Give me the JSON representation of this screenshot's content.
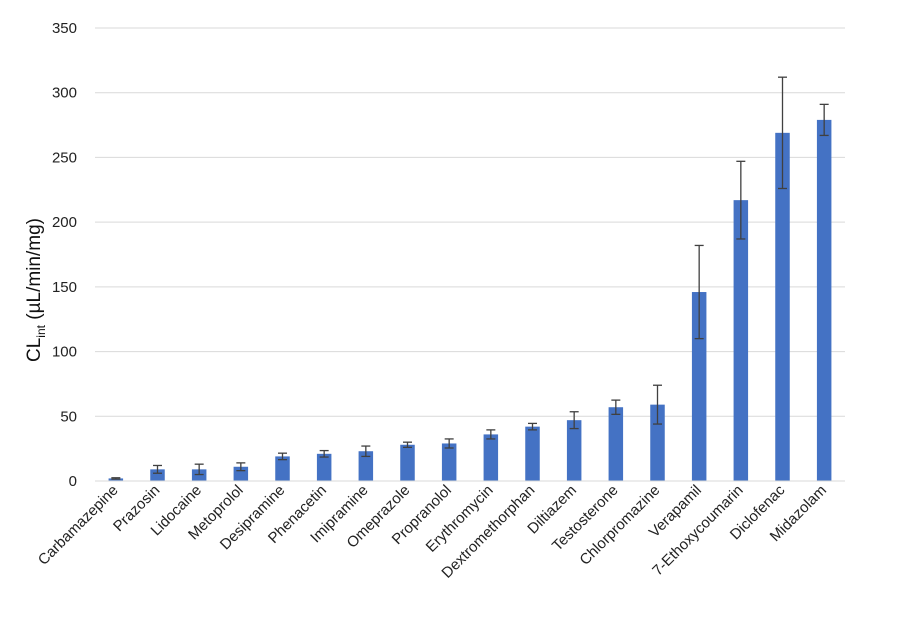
{
  "chart_data": {
    "type": "bar",
    "title": "",
    "ylabel": {
      "main": "CL",
      "subscript": "int",
      "unit": " (µL/min/mg)"
    },
    "xlabel": "",
    "ylim": [
      0,
      350
    ],
    "yticks": [
      0,
      50,
      100,
      150,
      200,
      250,
      300,
      350
    ],
    "grid": true,
    "legend": "none",
    "colors": {
      "bar": "#4472C4",
      "grid": "#d9d9d9",
      "error_bar": "#404040"
    },
    "categories": [
      "Carbamazepine",
      "Prazosin",
      "Lidocaine",
      "Metoprolol",
      "Desipramine",
      "Phenacetin",
      "Imipramine",
      "Omeprazole",
      "Propranolol",
      "Erythromycin",
      "Dextromethorphan",
      "Diltiazem",
      "Testosterone",
      "Chlorpromazine",
      "Verapamil",
      "7-Ethoxycoumarin",
      "Diclofenac",
      "Midazolam"
    ],
    "values": [
      2,
      9,
      9,
      11,
      19,
      21,
      23,
      28,
      29,
      36,
      42,
      47,
      57,
      59,
      146,
      217,
      269,
      279
    ],
    "error": [
      0.5,
      3,
      4,
      3,
      2.5,
      2.5,
      4,
      2,
      3.5,
      3.5,
      2.5,
      6.5,
      5.5,
      15,
      36,
      30,
      43,
      12
    ]
  }
}
